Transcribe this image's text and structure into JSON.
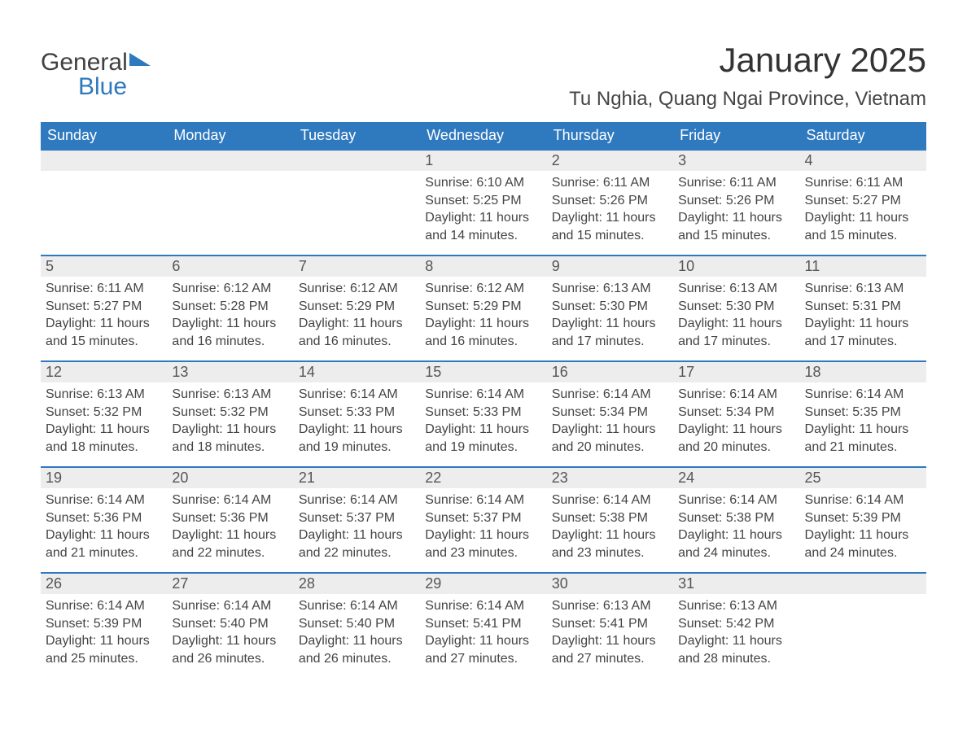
{
  "brand": {
    "name_gray": "General",
    "name_blue": "Blue"
  },
  "header": {
    "title": "January 2025",
    "location": "Tu Nghia, Quang Ngai Province, Vietnam"
  },
  "style": {
    "header_bg": "#2f79bf",
    "header_text": "#ffffff",
    "daybar_bg": "#ededed",
    "daybar_border": "#2f79bf",
    "body_text": "#444444",
    "page_bg": "#ffffff",
    "title_fontsize": 42,
    "location_fontsize": 24,
    "th_fontsize": 18,
    "daynum_fontsize": 18,
    "cell_fontsize": 16
  },
  "weekdays": [
    "Sunday",
    "Monday",
    "Tuesday",
    "Wednesday",
    "Thursday",
    "Friday",
    "Saturday"
  ],
  "first_weekday_index": 3,
  "days": [
    {
      "n": 1,
      "sunrise": "6:10 AM",
      "sunset": "5:25 PM",
      "daylight": "11 hours and 14 minutes."
    },
    {
      "n": 2,
      "sunrise": "6:11 AM",
      "sunset": "5:26 PM",
      "daylight": "11 hours and 15 minutes."
    },
    {
      "n": 3,
      "sunrise": "6:11 AM",
      "sunset": "5:26 PM",
      "daylight": "11 hours and 15 minutes."
    },
    {
      "n": 4,
      "sunrise": "6:11 AM",
      "sunset": "5:27 PM",
      "daylight": "11 hours and 15 minutes."
    },
    {
      "n": 5,
      "sunrise": "6:11 AM",
      "sunset": "5:27 PM",
      "daylight": "11 hours and 15 minutes."
    },
    {
      "n": 6,
      "sunrise": "6:12 AM",
      "sunset": "5:28 PM",
      "daylight": "11 hours and 16 minutes."
    },
    {
      "n": 7,
      "sunrise": "6:12 AM",
      "sunset": "5:29 PM",
      "daylight": "11 hours and 16 minutes."
    },
    {
      "n": 8,
      "sunrise": "6:12 AM",
      "sunset": "5:29 PM",
      "daylight": "11 hours and 16 minutes."
    },
    {
      "n": 9,
      "sunrise": "6:13 AM",
      "sunset": "5:30 PM",
      "daylight": "11 hours and 17 minutes."
    },
    {
      "n": 10,
      "sunrise": "6:13 AM",
      "sunset": "5:30 PM",
      "daylight": "11 hours and 17 minutes."
    },
    {
      "n": 11,
      "sunrise": "6:13 AM",
      "sunset": "5:31 PM",
      "daylight": "11 hours and 17 minutes."
    },
    {
      "n": 12,
      "sunrise": "6:13 AM",
      "sunset": "5:32 PM",
      "daylight": "11 hours and 18 minutes."
    },
    {
      "n": 13,
      "sunrise": "6:13 AM",
      "sunset": "5:32 PM",
      "daylight": "11 hours and 18 minutes."
    },
    {
      "n": 14,
      "sunrise": "6:14 AM",
      "sunset": "5:33 PM",
      "daylight": "11 hours and 19 minutes."
    },
    {
      "n": 15,
      "sunrise": "6:14 AM",
      "sunset": "5:33 PM",
      "daylight": "11 hours and 19 minutes."
    },
    {
      "n": 16,
      "sunrise": "6:14 AM",
      "sunset": "5:34 PM",
      "daylight": "11 hours and 20 minutes."
    },
    {
      "n": 17,
      "sunrise": "6:14 AM",
      "sunset": "5:34 PM",
      "daylight": "11 hours and 20 minutes."
    },
    {
      "n": 18,
      "sunrise": "6:14 AM",
      "sunset": "5:35 PM",
      "daylight": "11 hours and 21 minutes."
    },
    {
      "n": 19,
      "sunrise": "6:14 AM",
      "sunset": "5:36 PM",
      "daylight": "11 hours and 21 minutes."
    },
    {
      "n": 20,
      "sunrise": "6:14 AM",
      "sunset": "5:36 PM",
      "daylight": "11 hours and 22 minutes."
    },
    {
      "n": 21,
      "sunrise": "6:14 AM",
      "sunset": "5:37 PM",
      "daylight": "11 hours and 22 minutes."
    },
    {
      "n": 22,
      "sunrise": "6:14 AM",
      "sunset": "5:37 PM",
      "daylight": "11 hours and 23 minutes."
    },
    {
      "n": 23,
      "sunrise": "6:14 AM",
      "sunset": "5:38 PM",
      "daylight": "11 hours and 23 minutes."
    },
    {
      "n": 24,
      "sunrise": "6:14 AM",
      "sunset": "5:38 PM",
      "daylight": "11 hours and 24 minutes."
    },
    {
      "n": 25,
      "sunrise": "6:14 AM",
      "sunset": "5:39 PM",
      "daylight": "11 hours and 24 minutes."
    },
    {
      "n": 26,
      "sunrise": "6:14 AM",
      "sunset": "5:39 PM",
      "daylight": "11 hours and 25 minutes."
    },
    {
      "n": 27,
      "sunrise": "6:14 AM",
      "sunset": "5:40 PM",
      "daylight": "11 hours and 26 minutes."
    },
    {
      "n": 28,
      "sunrise": "6:14 AM",
      "sunset": "5:40 PM",
      "daylight": "11 hours and 26 minutes."
    },
    {
      "n": 29,
      "sunrise": "6:14 AM",
      "sunset": "5:41 PM",
      "daylight": "11 hours and 27 minutes."
    },
    {
      "n": 30,
      "sunrise": "6:13 AM",
      "sunset": "5:41 PM",
      "daylight": "11 hours and 27 minutes."
    },
    {
      "n": 31,
      "sunrise": "6:13 AM",
      "sunset": "5:42 PM",
      "daylight": "11 hours and 28 minutes."
    }
  ],
  "labels": {
    "sunrise_prefix": "Sunrise: ",
    "sunset_prefix": "Sunset: ",
    "daylight_prefix": "Daylight: "
  }
}
